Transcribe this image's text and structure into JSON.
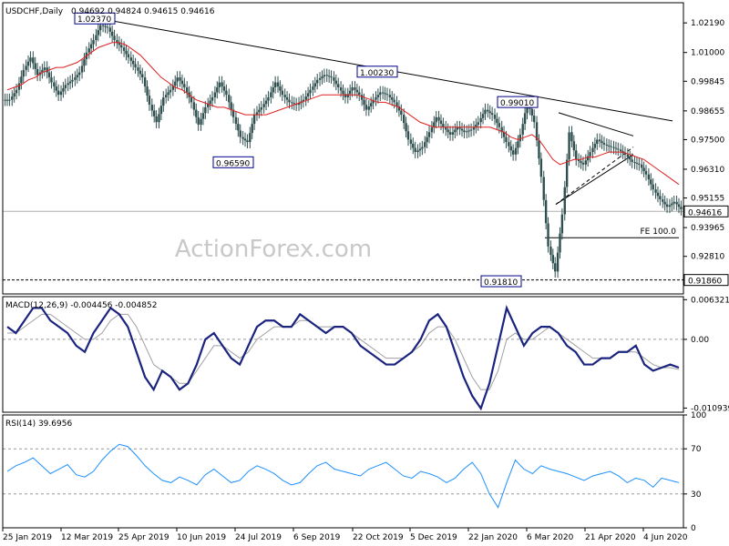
{
  "chart_data": [
    {
      "type": "candlestick",
      "title": "USDCHF,Daily",
      "ohlc_header": "0.94692 0.94824 0.94615 0.94616",
      "ylim": [
        0.913,
        1.03
      ],
      "y_ticks": [
        "1.02190",
        "1.01000",
        "0.99845",
        "0.98655",
        "0.97500",
        "0.96310",
        "0.95155",
        "0.93965",
        "0.92810"
      ],
      "last_price": "0.94616",
      "support_line_label": "0.91860",
      "support_level": 0.9186,
      "price_labels": [
        {
          "text": "1.02370",
          "date": "2019-04-23",
          "value": 1.0237
        },
        {
          "text": "0.96590",
          "date": "2019-08-07",
          "value": 0.9659
        },
        {
          "text": "1.00230",
          "date": "2019-10-30",
          "value": 1.0023
        },
        {
          "text": "0.99010",
          "date": "2020-03-06",
          "value": 0.9901
        },
        {
          "text": "0.91810",
          "date": "2020-03-10",
          "value": 0.9181
        }
      ],
      "fe_label": "FE 100.0",
      "fe_level": 0.9356,
      "close_series": [
        0.991,
        0.995,
        1.003,
        1.008,
        1.001,
        1.004,
        0.998,
        0.993,
        0.997,
        0.999,
        1.002,
        1.01,
        1.015,
        1.021,
        1.02,
        1.015,
        1.012,
        1.008,
        1.004,
        1.0,
        0.989,
        0.982,
        0.992,
        0.995,
        1.0,
        0.996,
        0.99,
        0.981,
        0.988,
        0.992,
        0.998,
        0.993,
        0.984,
        0.976,
        0.974,
        0.985,
        0.988,
        0.992,
        0.998,
        0.993,
        0.99,
        0.989,
        0.991,
        0.995,
        0.999,
        1.001,
        1.0,
        0.996,
        0.992,
        0.996,
        0.993,
        0.987,
        0.991,
        0.994,
        0.993,
        0.99,
        0.985,
        0.975,
        0.97,
        0.972,
        0.978,
        0.984,
        0.98,
        0.977,
        0.98,
        0.978,
        0.979,
        0.982,
        0.987,
        0.985,
        0.98,
        0.974,
        0.969,
        0.977,
        0.99,
        0.982,
        0.96,
        0.932,
        0.922,
        0.945,
        0.978,
        0.967,
        0.965,
        0.97,
        0.975,
        0.973,
        0.972,
        0.971,
        0.969,
        0.966,
        0.965,
        0.961,
        0.955,
        0.951,
        0.948,
        0.95,
        0.947
      ],
      "ma_series": [
        0.995,
        0.996,
        0.997,
        0.999,
        1.0,
        1.002,
        1.003,
        1.004,
        1.004,
        1.005,
        1.006,
        1.008,
        1.01,
        1.012,
        1.013,
        1.014,
        1.014,
        1.013,
        1.011,
        1.009,
        1.006,
        1.003,
        1.0,
        0.998,
        0.996,
        0.995,
        0.993,
        0.991,
        0.99,
        0.989,
        0.988,
        0.988,
        0.987,
        0.986,
        0.985,
        0.985,
        0.985,
        0.985,
        0.986,
        0.987,
        0.988,
        0.989,
        0.99,
        0.991,
        0.992,
        0.993,
        0.993,
        0.993,
        0.993,
        0.993,
        0.993,
        0.992,
        0.991,
        0.99,
        0.99,
        0.989,
        0.988,
        0.986,
        0.984,
        0.982,
        0.981,
        0.98,
        0.98,
        0.98,
        0.98,
        0.98,
        0.98,
        0.98,
        0.98,
        0.98,
        0.979,
        0.978,
        0.976,
        0.975,
        0.976,
        0.977,
        0.975,
        0.971,
        0.967,
        0.965,
        0.966,
        0.967,
        0.967,
        0.968,
        0.968,
        0.969,
        0.97,
        0.97,
        0.97,
        0.969,
        0.968,
        0.967,
        0.965,
        0.963,
        0.961,
        0.959,
        0.957
      ]
    },
    {
      "type": "line",
      "title": "MACD(12,26,9) -0.004456 -0.004852",
      "ylim": [
        -0.0116,
        0.0068
      ],
      "y_ticks": [
        "0.006321",
        "0.00",
        "-0.010939"
      ],
      "macd_series": [
        0.002,
        0.001,
        0.003,
        0.005,
        0.005,
        0.003,
        0.002,
        0.001,
        -0.001,
        -0.002,
        0.001,
        0.003,
        0.005,
        0.004,
        0.002,
        -0.002,
        -0.006,
        -0.008,
        -0.005,
        -0.006,
        -0.008,
        -0.007,
        -0.004,
        0.0,
        0.001,
        -0.001,
        -0.003,
        -0.004,
        -0.001,
        0.002,
        0.003,
        0.003,
        0.002,
        0.002,
        0.004,
        0.003,
        0.002,
        0.001,
        0.002,
        0.002,
        0.001,
        -0.001,
        -0.002,
        -0.003,
        -0.004,
        -0.004,
        -0.003,
        -0.002,
        0.0,
        0.003,
        0.004,
        0.002,
        -0.002,
        -0.006,
        -0.009,
        -0.011,
        -0.007,
        -0.001,
        0.005,
        0.002,
        -0.001,
        0.001,
        0.002,
        0.002,
        0.001,
        -0.001,
        -0.002,
        -0.004,
        -0.004,
        -0.003,
        -0.003,
        -0.002,
        -0.002,
        -0.001,
        -0.004,
        -0.005,
        -0.0045,
        -0.004,
        -0.0045
      ],
      "signal_series": [
        0.001,
        0.001,
        0.002,
        0.003,
        0.004,
        0.004,
        0.003,
        0.002,
        0.001,
        0.0,
        0.0,
        0.001,
        0.003,
        0.004,
        0.004,
        0.002,
        -0.001,
        -0.004,
        -0.005,
        -0.006,
        -0.007,
        -0.007,
        -0.005,
        -0.003,
        -0.001,
        -0.001,
        -0.002,
        -0.003,
        -0.002,
        0.0,
        0.001,
        0.002,
        0.002,
        0.002,
        0.003,
        0.003,
        0.002,
        0.002,
        0.002,
        0.002,
        0.001,
        0.0,
        -0.001,
        -0.002,
        -0.003,
        -0.003,
        -0.003,
        -0.002,
        -0.001,
        0.001,
        0.002,
        0.002,
        0.0,
        -0.003,
        -0.006,
        -0.008,
        -0.008,
        -0.005,
        0.0,
        0.001,
        0.0,
        0.0,
        0.001,
        0.002,
        0.001,
        0.0,
        -0.001,
        -0.002,
        -0.003,
        -0.003,
        -0.003,
        -0.002,
        -0.002,
        -0.002,
        -0.003,
        -0.004,
        -0.0045,
        -0.0045,
        -0.0048
      ]
    },
    {
      "type": "line",
      "title": "RSI(14) 39.6956",
      "ylim": [
        0,
        100
      ],
      "y_ticks": [
        "100",
        "70",
        "30",
        "0"
      ],
      "rsi_series": [
        50,
        55,
        58,
        62,
        55,
        48,
        52,
        56,
        47,
        45,
        50,
        60,
        68,
        74,
        72,
        64,
        55,
        48,
        42,
        40,
        45,
        42,
        38,
        47,
        52,
        46,
        40,
        42,
        50,
        55,
        52,
        48,
        42,
        38,
        40,
        48,
        55,
        58,
        52,
        50,
        48,
        46,
        52,
        55,
        58,
        52,
        46,
        44,
        50,
        48,
        45,
        40,
        44,
        52,
        58,
        48,
        30,
        18,
        40,
        60,
        52,
        48,
        55,
        52,
        50,
        48,
        45,
        42,
        46,
        48,
        50,
        46,
        40,
        44,
        42,
        36,
        44,
        42,
        40
      ],
      "levels": [
        70,
        30
      ]
    }
  ],
  "x_tick_labels": [
    "25 Jan 2019",
    "12 Mar 2019",
    "25 Apr 2019",
    "10 Jun 2019",
    "24 Jul 2019",
    "6 Sep 2019",
    "22 Oct 2019",
    "5 Dec 2019",
    "22 Jan 2020",
    "6 Mar 2020",
    "21 Apr 2020",
    "4 Jun 2020"
  ],
  "watermark": "ActionForex.com",
  "colors": {
    "candle": "#2f4f4f",
    "ma": "#e02020",
    "macd": "#1a237e",
    "signal": "#a0a0a0",
    "rsi": "#1e90ff",
    "label_border": "#00008b",
    "last_price_box": "#ffffff",
    "trendline": "#000000"
  }
}
